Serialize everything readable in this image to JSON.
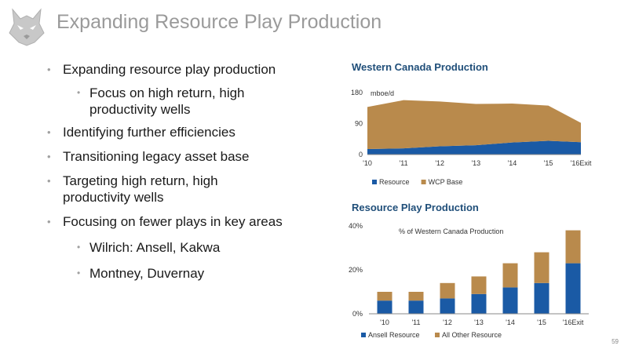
{
  "slide": {
    "title": "Expanding Resource Play Production",
    "page_number": "59"
  },
  "bullets": [
    {
      "level": 1,
      "text": "Expanding resource play production"
    },
    {
      "level": 2,
      "text": "Focus on high return, high productivity wells"
    },
    {
      "level": 1,
      "text": "Identifying further efficiencies"
    },
    {
      "level": 1,
      "text": "Transitioning legacy asset base"
    },
    {
      "level": 1,
      "text": "Targeting high return, high productivity wells"
    },
    {
      "level": 1,
      "text": "Focusing on fewer plays in key areas"
    },
    {
      "level": 2,
      "text": "Wilrich: Ansell, Kakwa"
    },
    {
      "level": 2,
      "text": "Montney, Duvernay"
    }
  ],
  "colors": {
    "resource": "#1a5aa5",
    "wcp_base": "#b98a4c",
    "axis": "#888888",
    "title": "#1f4e79"
  },
  "chart_data": [
    {
      "type": "area",
      "title": "Western Canada Production",
      "ylabel": "mboe/d",
      "categories": [
        "'10",
        "'11",
        "'12",
        "'13",
        "'14",
        "'15",
        "'16Exit"
      ],
      "x_positions": [
        0,
        1,
        2,
        3,
        4,
        5,
        5.9
      ],
      "ylim": [
        0,
        180
      ],
      "yticks": [
        0,
        90,
        180
      ],
      "stacked": true,
      "legend_position": "bottom",
      "series": [
        {
          "name": "Resource",
          "values": [
            16,
            18,
            24,
            27,
            35,
            40,
            36
          ]
        },
        {
          "name": "WCP Base",
          "values": [
            122,
            140,
            130,
            120,
            113,
            102,
            56
          ]
        }
      ]
    },
    {
      "type": "bar",
      "title": "Resource Play Production",
      "ylabel": "% of Western Canada Production",
      "categories": [
        "'10",
        "'11",
        "'12",
        "'13",
        "'14",
        "'15",
        "'16Exit"
      ],
      "ylim": [
        0,
        40
      ],
      "yticks": [
        "0%",
        "20%",
        "40%"
      ],
      "stacked": true,
      "legend_position": "bottom",
      "series": [
        {
          "name": "Ansell Resource",
          "values": [
            6,
            6,
            7,
            9,
            12,
            14,
            23
          ]
        },
        {
          "name": "All Other Resource",
          "values": [
            4,
            4,
            7,
            8,
            11,
            14,
            15
          ]
        }
      ]
    }
  ]
}
